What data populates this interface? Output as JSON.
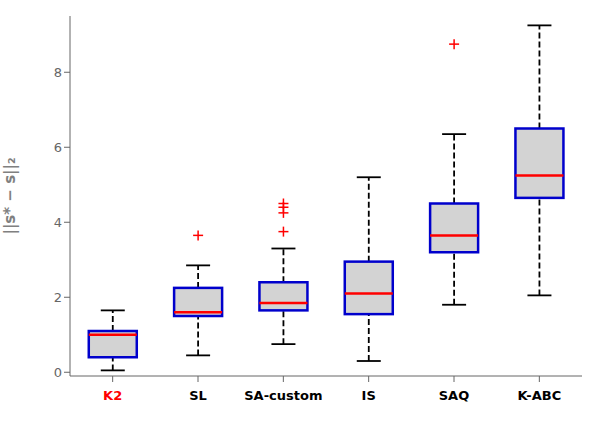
{
  "chart_data": {
    "type": "box",
    "categories": [
      "K2",
      "SL",
      "SA-custom",
      "IS",
      "SAQ",
      "K-ABC"
    ],
    "boxes": [
      {
        "low": 0.05,
        "q1": 0.4,
        "median": 1.0,
        "q3": 1.1,
        "high": 1.65,
        "outliers": []
      },
      {
        "low": 0.45,
        "q1": 1.5,
        "median": 1.6,
        "q3": 2.25,
        "high": 2.85,
        "outliers": [
          3.65
        ]
      },
      {
        "low": 0.75,
        "q1": 1.65,
        "median": 1.85,
        "q3": 2.4,
        "high": 3.3,
        "outliers": [
          3.75,
          4.25,
          4.4,
          4.5
        ]
      },
      {
        "low": 0.3,
        "q1": 1.55,
        "median": 2.1,
        "q3": 2.95,
        "high": 5.2,
        "outliers": []
      },
      {
        "low": 1.8,
        "q1": 3.2,
        "median": 3.65,
        "q3": 4.5,
        "high": 6.35,
        "outliers": [
          8.75
        ]
      },
      {
        "low": 2.05,
        "q1": 4.65,
        "median": 5.25,
        "q3": 6.5,
        "high": 9.25,
        "outliers": []
      }
    ],
    "color": "#d3d3d3",
    "colors": [
      "#ff0000",
      "#000000",
      "#000000",
      "#000000",
      "#000000",
      "#000000"
    ],
    "ylabel": "||s* − s||₂",
    "ylim": [
      -0.1,
      9.5
    ],
    "yticks": [
      0,
      2,
      4,
      6,
      8
    ],
    "grid": false
  }
}
